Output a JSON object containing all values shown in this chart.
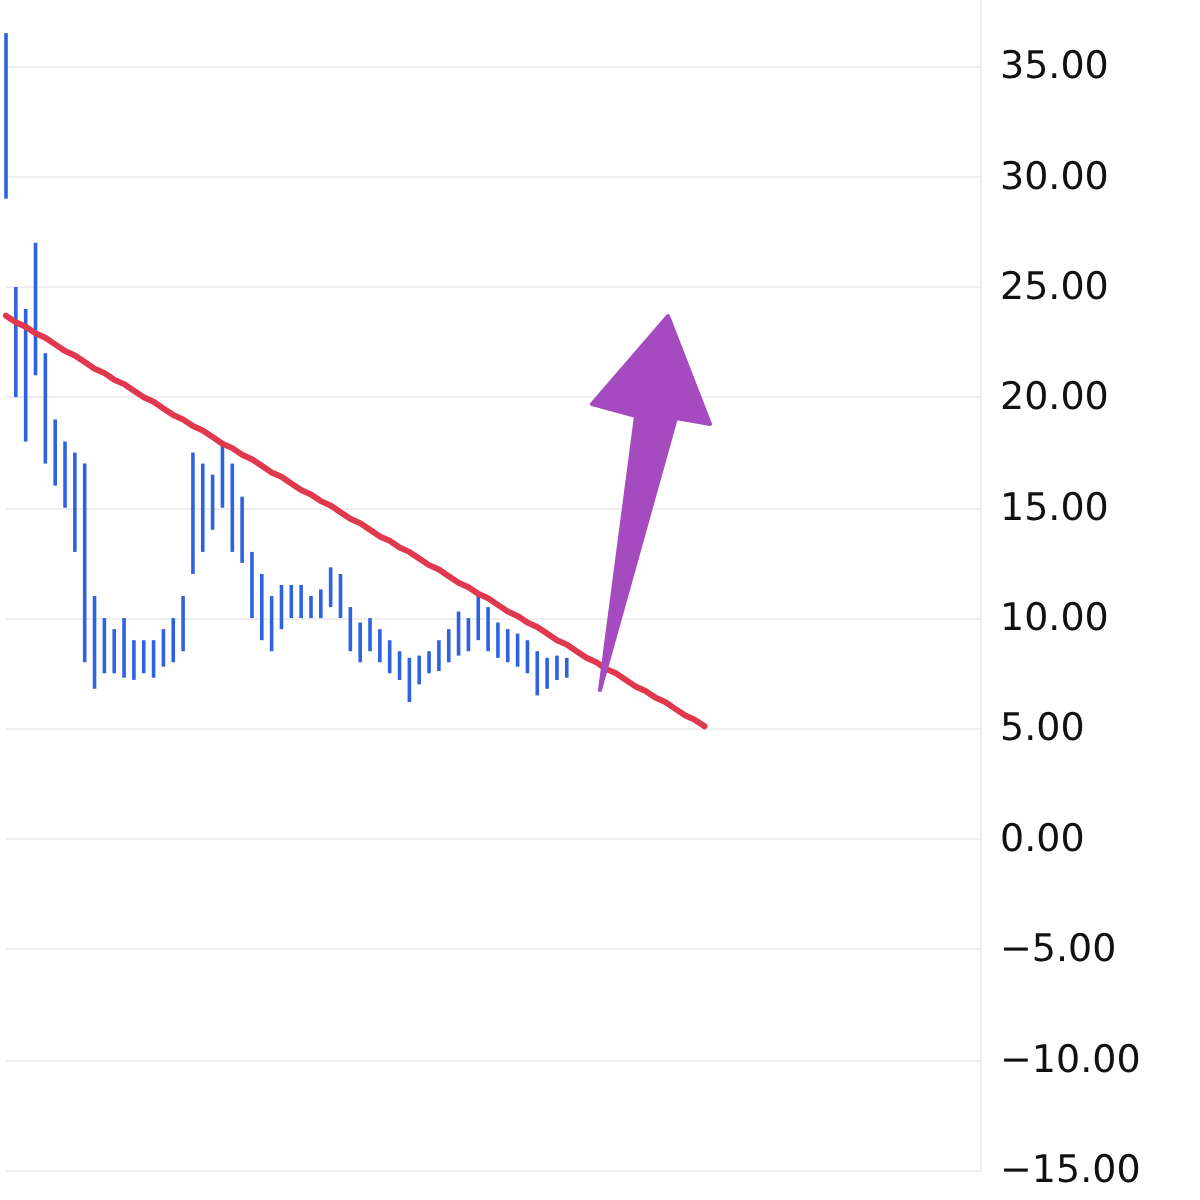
{
  "chart_data": {
    "type": "bar",
    "grid": "y",
    "categories": [
      null,
      null,
      null,
      null,
      null,
      null,
      null,
      null,
      null,
      null,
      null,
      null,
      null,
      null,
      null,
      null,
      null,
      null,
      null,
      null,
      null,
      null,
      null,
      null,
      null,
      null,
      null,
      null,
      null,
      null,
      null,
      null,
      null,
      null,
      null,
      null,
      null,
      null,
      null,
      null,
      null,
      null,
      null,
      null,
      null,
      null,
      null,
      null,
      null,
      null,
      null,
      null,
      null,
      null,
      null,
      null,
      null,
      null,
      null,
      null,
      null,
      null,
      null,
      null,
      null,
      null,
      null,
      null,
      null,
      null,
      null,
      null,
      null,
      null,
      null,
      null,
      null,
      null,
      null,
      null,
      null,
      null,
      null,
      null,
      null,
      null,
      null,
      null,
      null,
      null,
      null,
      null,
      null,
      null,
      null,
      null,
      null,
      null,
      null,
      null
    ],
    "ylim": [
      -15,
      38
    ],
    "yticks": [
      {
        "value": -15,
        "label": "−15.00"
      },
      {
        "value": -10,
        "label": "−10.00"
      },
      {
        "value": -5,
        "label": "−5.00"
      },
      {
        "value": 0,
        "label": "0.00"
      },
      {
        "value": 5,
        "label": "5.00"
      },
      {
        "value": 10,
        "label": "10.00"
      },
      {
        "value": 15,
        "label": "15.00"
      },
      {
        "value": 20,
        "label": "20.00"
      },
      {
        "value": 25,
        "label": "25.00"
      },
      {
        "value": 30,
        "label": "30.00"
      },
      {
        "value": 35,
        "label": "35.00"
      }
    ],
    "series": [
      {
        "color": "#2f62e0",
        "base": [
          29,
          20,
          18,
          21,
          17,
          16,
          15,
          13,
          8,
          6.8,
          7.5,
          7.5,
          7.3,
          7.2,
          7.5,
          7.3,
          7.8,
          8,
          8.5,
          12,
          13,
          14,
          15,
          13,
          12.5,
          10,
          9,
          8.5,
          9.5,
          10,
          10,
          10,
          10,
          10.5,
          10,
          8.5,
          8,
          8.5,
          8,
          7.5,
          7.2,
          6.2,
          7,
          7.5,
          7.6,
          8,
          8.3,
          8.5,
          9,
          8.5,
          8.2,
          8,
          7.8,
          7.5,
          6.5,
          6.8,
          7.2,
          7.3,
          null,
          null,
          null,
          null,
          null,
          null,
          null,
          null,
          null,
          null,
          null,
          null,
          null,
          null,
          null,
          null,
          null,
          null,
          null,
          null,
          null,
          null,
          null,
          null,
          null,
          null,
          null,
          null,
          null,
          null,
          null,
          null,
          null,
          null,
          null,
          null,
          null,
          null,
          null,
          null,
          null,
          null
        ],
        "values": [
          7.5,
          5,
          6,
          6,
          5,
          3,
          3,
          4.5,
          9,
          4.2,
          2.5,
          2,
          2.7,
          1.8,
          1.5,
          1.7,
          1.7,
          2,
          2.5,
          5.5,
          4,
          2.5,
          3,
          4,
          3,
          3,
          3,
          2.5,
          2,
          1.5,
          1.5,
          1,
          1.3,
          1.8,
          2,
          2,
          1.8,
          1.5,
          1.5,
          1.5,
          1.3,
          2,
          1.3,
          1,
          1.4,
          1.5,
          2,
          1.5,
          2,
          2,
          1.6,
          1.5,
          1.5,
          1.5,
          2,
          1.4,
          1.1,
          0.9,
          null,
          null,
          null,
          null,
          null,
          null,
          null,
          null,
          null,
          null,
          null,
          null,
          null,
          null,
          null,
          null,
          null,
          null,
          null,
          null,
          null,
          null,
          null,
          null,
          null,
          null,
          null,
          null,
          null,
          null,
          null,
          null,
          null,
          null,
          null,
          null,
          null,
          null,
          null,
          null,
          null,
          null
        ]
      },
      {
        "type": "line",
        "color": "#e0384c",
        "values": [
          23.7,
          23.4,
          23.2,
          22.9,
          22.7,
          22.4,
          22.1,
          21.9,
          21.6,
          21.3,
          21.1,
          20.8,
          20.6,
          20.3,
          20,
          19.8,
          19.5,
          19.2,
          19,
          18.7,
          18.5,
          18.2,
          17.9,
          17.7,
          17.4,
          17.2,
          16.9,
          16.6,
          16.4,
          16.1,
          15.8,
          15.6,
          15.3,
          15.1,
          14.8,
          14.5,
          14.3,
          14,
          13.7,
          13.5,
          13.2,
          13,
          12.7,
          12.4,
          12.2,
          11.9,
          11.6,
          11.4,
          11.1,
          10.9,
          10.6,
          10.3,
          10.1,
          9.8,
          9.6,
          9.3,
          9,
          8.8,
          8.5,
          8.2,
          8,
          7.7,
          7.5,
          7.2,
          6.9,
          6.7,
          6.4,
          6.2,
          5.9,
          5.6,
          5.4,
          5.1,
          null,
          null,
          null,
          null,
          null,
          null,
          null,
          null,
          null,
          null,
          null,
          null,
          null,
          null,
          null,
          null,
          null,
          null,
          null,
          null,
          null,
          null,
          null,
          null,
          null,
          null,
          null,
          null
        ]
      }
    ]
  }
}
